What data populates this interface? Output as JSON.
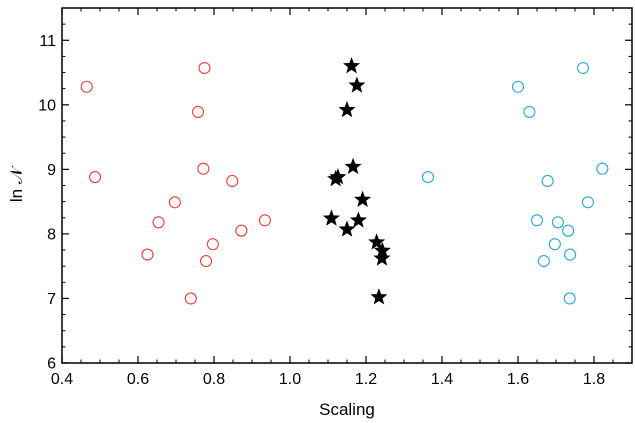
{
  "chart_data": {
    "type": "scatter",
    "title": "",
    "xlabel": "Scaling",
    "ylabel": "ln 𝒩",
    "xlim": [
      0.4,
      1.9
    ],
    "ylim": [
      6,
      11.5
    ],
    "xticks": [
      0.4,
      0.6,
      0.8,
      1.0,
      1.2,
      1.4,
      1.6,
      1.8
    ],
    "xtick_labels": [
      "0.4",
      "0.6",
      "0.8",
      "1.0",
      "1.2",
      "1.4",
      "1.6",
      "1.8"
    ],
    "yticks": [
      6,
      7,
      8,
      9,
      10,
      11
    ],
    "ytick_labels": [
      "6",
      "7",
      "8",
      "9",
      "10",
      "11"
    ],
    "grid": false,
    "series": [
      {
        "marker": "open-circle",
        "color": "#e8413a",
        "points": [
          [
            0.465,
            10.28
          ],
          [
            0.775,
            10.57
          ],
          [
            0.758,
            9.89
          ],
          [
            0.487,
            8.88
          ],
          [
            0.772,
            9.01
          ],
          [
            0.848,
            8.82
          ],
          [
            0.697,
            8.49
          ],
          [
            0.654,
            8.18
          ],
          [
            0.934,
            8.21
          ],
          [
            0.872,
            8.05
          ],
          [
            0.797,
            7.84
          ],
          [
            0.625,
            7.68
          ],
          [
            0.779,
            7.58
          ],
          [
            0.739,
            7.0
          ]
        ]
      },
      {
        "marker": "star",
        "color": "#000000",
        "points": [
          [
            1.162,
            10.6
          ],
          [
            1.176,
            10.3
          ],
          [
            1.15,
            9.92
          ],
          [
            1.166,
            9.04
          ],
          [
            1.126,
            8.88
          ],
          [
            1.12,
            8.85
          ],
          [
            1.191,
            8.53
          ],
          [
            1.109,
            8.24
          ],
          [
            1.18,
            8.21
          ],
          [
            1.15,
            8.07
          ],
          [
            1.228,
            7.87
          ],
          [
            1.243,
            7.74
          ],
          [
            1.242,
            7.62
          ],
          [
            1.234,
            7.02
          ]
        ]
      },
      {
        "marker": "open-circle",
        "color": "#29a6e0",
        "points": [
          [
            1.771,
            10.57
          ],
          [
            1.6,
            10.28
          ],
          [
            1.63,
            9.89
          ],
          [
            1.363,
            8.88
          ],
          [
            1.822,
            9.01
          ],
          [
            1.678,
            8.82
          ],
          [
            1.784,
            8.49
          ],
          [
            1.65,
            8.21
          ],
          [
            1.705,
            8.18
          ],
          [
            1.732,
            8.05
          ],
          [
            1.697,
            7.84
          ],
          [
            1.737,
            7.68
          ],
          [
            1.668,
            7.58
          ],
          [
            1.736,
            7.0
          ]
        ]
      }
    ]
  }
}
